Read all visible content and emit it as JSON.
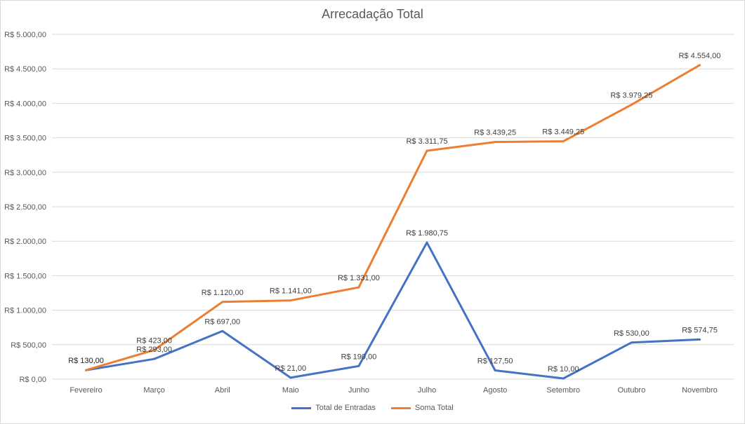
{
  "chart_data": {
    "type": "line",
    "title": "Arrecadação Total",
    "xlabel": "",
    "ylabel": "",
    "categories": [
      "Fevereiro",
      "Março",
      "Abril",
      "Maio",
      "Junho",
      "Julho",
      "Agosto",
      "Setembro",
      "Outubro",
      "Novembro"
    ],
    "series": [
      {
        "name": "Total de Entradas",
        "color": "#4472C4",
        "values": [
          130,
          293,
          697,
          21,
          190,
          1980.75,
          127.5,
          10,
          530,
          574.75
        ],
        "labels": [
          "R$ 130,00",
          "R$ 293,00",
          "R$ 697,00",
          "R$ 21,00",
          "R$ 190,00",
          "R$ 1.980,75",
          "R$ 127,50",
          "R$ 10,00",
          "R$ 530,00",
          "R$ 574,75"
        ]
      },
      {
        "name": "Soma Total",
        "color": "#ED7D31",
        "values": [
          130,
          423,
          1120,
          1141,
          1331,
          3311.75,
          3439.25,
          3449.25,
          3979.25,
          4554
        ],
        "labels": [
          "R$ 130,00",
          "R$ 423,00",
          "R$ 1.120,00",
          "R$ 1.141,00",
          "R$ 1.331,00",
          "R$ 3.311,75",
          "R$ 3.439,25",
          "R$ 3.449,25",
          "R$ 3.979,25",
          "R$ 4.554,00"
        ]
      }
    ],
    "ylim": [
      0,
      5000
    ],
    "yticks": [
      0,
      500,
      1000,
      1500,
      2000,
      2500,
      3000,
      3500,
      4000,
      4500,
      5000
    ],
    "ytick_labels": [
      "R$ 0,00",
      "R$ 500,00",
      "R$ 1.000,00",
      "R$ 1.500,00",
      "R$ 2.000,00",
      "R$ 2.500,00",
      "R$ 3.000,00",
      "R$ 3.500,00",
      "R$ 4.000,00",
      "R$ 4.500,00",
      "R$ 5.000,00"
    ],
    "grid": true,
    "legend_position": "bottom"
  }
}
